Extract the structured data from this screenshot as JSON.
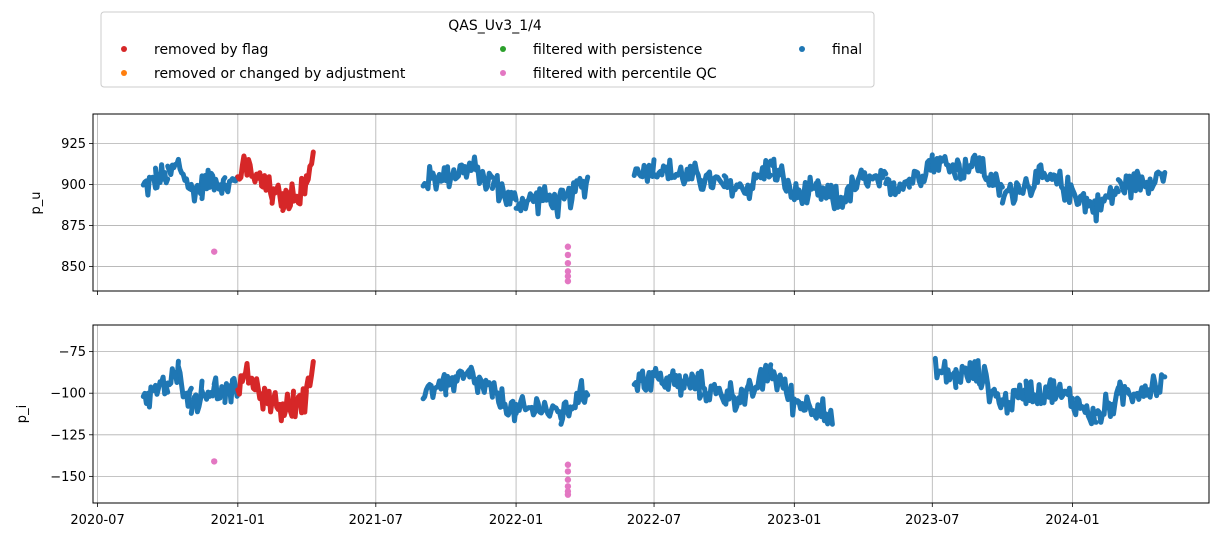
{
  "chart_data": {
    "type": "scatter",
    "legend": {
      "title": "QAS_Uv3_1/4",
      "placement": "top-left, above plots",
      "entries": [
        {
          "label": "removed by flag",
          "color": "#d62728"
        },
        {
          "label": "removed or changed by adjustment",
          "color": "#ff7f0e"
        },
        {
          "label": "filtered with persistence",
          "color": "#2ca02c"
        },
        {
          "label": "filtered with percentile QC",
          "color": "#e377c2"
        },
        {
          "label": "final",
          "color": "#1f77b4"
        }
      ]
    },
    "xlim": [
      "2020-06-25",
      "2024-06-28"
    ],
    "x_ticks": [
      "2020-07",
      "2021-01",
      "2021-07",
      "2022-01",
      "2022-07",
      "2023-01",
      "2023-07",
      "2024-01"
    ],
    "grid": true,
    "panels": [
      {
        "ylabel": "p_u",
        "ylim": [
          835,
          943
        ],
        "y_ticks": [
          850,
          875,
          900,
          925
        ],
        "series": [
          {
            "name": "final",
            "color": "#1f77b4",
            "segments": [
              {
                "x": [
                  "2020-08-30",
                  "2020-09-15",
                  "2020-10-01",
                  "2020-10-15",
                  "2020-11-01",
                  "2020-11-15",
                  "2020-12-01",
                  "2020-12-15",
                  "2020-12-31"
                ],
                "y": [
                  898,
                  903,
                  905,
                  913,
                  896,
                  899,
                  905,
                  898,
                  902
                ]
              },
              {
                "x": [
                  "2021-09-01",
                  "2021-10-01",
                  "2021-11-01",
                  "2021-12-01",
                  "2022-01-01",
                  "2022-02-01",
                  "2022-03-01",
                  "2022-04-05"
                ],
                "y": [
                  902,
                  906,
                  910,
                  901,
                  888,
                  892,
                  888,
                  903
                ]
              },
              {
                "x": [
                  "2022-06-05",
                  "2022-07-01",
                  "2022-08-01",
                  "2022-09-01",
                  "2022-10-01",
                  "2022-11-01",
                  "2022-12-01",
                  "2023-01-01",
                  "2023-02-01",
                  "2023-03-01",
                  "2023-04-01",
                  "2023-05-01",
                  "2023-06-01",
                  "2023-07-01",
                  "2023-08-01",
                  "2023-09-01",
                  "2023-10-01",
                  "2023-11-01",
                  "2023-12-01",
                  "2024-01-01",
                  "2024-02-01",
                  "2024-03-01",
                  "2024-04-01",
                  "2024-05-01"
                ],
                "y": [
                  908,
                  910,
                  906,
                  904,
                  899,
                  898,
                  912,
                  893,
                  895,
                  890,
                  903,
                  900,
                  902,
                  915,
                  910,
                  913,
                  893,
                  901,
                  903,
                  896,
                  885,
                  898,
                  903,
                  906
                ]
              }
            ]
          },
          {
            "name": "removed by flag",
            "color": "#d62728",
            "segments": [
              {
                "x": [
                  "2021-01-01",
                  "2021-01-15",
                  "2021-02-01",
                  "2021-02-15",
                  "2021-03-01",
                  "2021-03-15",
                  "2021-04-01",
                  "2021-04-10"
                ],
                "y": [
                  905,
                  910,
                  900,
                  895,
                  890,
                  893,
                  898,
                  923
                ]
              }
            ]
          },
          {
            "name": "filtered with percentile QC",
            "color": "#e377c2",
            "points": [
              {
                "x": "2020-12-01",
                "y": 859
              },
              {
                "x": "2022-03-10",
                "y": 862
              },
              {
                "x": "2022-03-10",
                "y": 857
              },
              {
                "x": "2022-03-10",
                "y": 852
              },
              {
                "x": "2022-03-10",
                "y": 847
              },
              {
                "x": "2022-03-10",
                "y": 844
              },
              {
                "x": "2022-03-10",
                "y": 841
              }
            ]
          }
        ]
      },
      {
        "ylabel": "p_i",
        "ylim": [
          -166,
          -59
        ],
        "y_ticks": [
          -150,
          -125,
          -100,
          -75
        ],
        "series": [
          {
            "name": "final",
            "color": "#1f77b4",
            "segments": [
              {
                "x": [
                  "2020-08-30",
                  "2020-09-15",
                  "2020-10-01",
                  "2020-10-15",
                  "2020-11-01",
                  "2020-11-15",
                  "2020-12-01",
                  "2020-12-15",
                  "2020-12-31"
                ],
                "y": [
                  -102,
                  -98,
                  -96,
                  -88,
                  -104,
                  -101,
                  -97,
                  -103,
                  -98
                ]
              },
              {
                "x": [
                  "2021-09-01",
                  "2021-10-01",
                  "2021-11-01",
                  "2021-12-01",
                  "2022-01-01",
                  "2022-02-01",
                  "2022-03-01",
                  "2022-04-05"
                ],
                "y": [
                  -98,
                  -94,
                  -90,
                  -100,
                  -112,
                  -108,
                  -113,
                  -98
                ]
              },
              {
                "x": [
                  "2022-06-05",
                  "2022-07-01",
                  "2022-08-01",
                  "2022-09-01",
                  "2022-10-01",
                  "2022-11-01",
                  "2022-12-01",
                  "2023-01-01",
                  "2023-02-01",
                  "2023-02-20"
                ],
                "y": [
                  -92,
                  -90,
                  -94,
                  -96,
                  -101,
                  -102,
                  -86,
                  -105,
                  -108,
                  -120
                ]
              },
              {
                "x": [
                  "2023-07-05",
                  "2023-08-01",
                  "2023-09-01",
                  "2023-10-01",
                  "2023-11-01",
                  "2023-12-01",
                  "2024-01-01",
                  "2024-02-01",
                  "2024-03-01",
                  "2024-04-01",
                  "2024-05-01"
                ],
                "y": [
                  -87,
                  -90,
                  -88,
                  -107,
                  -99,
                  -98,
                  -104,
                  -115,
                  -102,
                  -97,
                  -94
                ]
              }
            ]
          },
          {
            "name": "removed by flag",
            "color": "#d62728",
            "segments": [
              {
                "x": [
                  "2021-01-01",
                  "2021-01-15",
                  "2021-02-01",
                  "2021-02-15",
                  "2021-03-01",
                  "2021-03-15",
                  "2021-04-01",
                  "2021-04-10"
                ],
                "y": [
                  -95,
                  -90,
                  -100,
                  -105,
                  -110,
                  -107,
                  -102,
                  -77
                ]
              }
            ]
          },
          {
            "name": "filtered with percentile QC",
            "color": "#e377c2",
            "points": [
              {
                "x": "2020-12-01",
                "y": -141
              },
              {
                "x": "2022-03-10",
                "y": -143
              },
              {
                "x": "2022-03-10",
                "y": -147
              },
              {
                "x": "2022-03-10",
                "y": -152
              },
              {
                "x": "2022-03-10",
                "y": -156
              },
              {
                "x": "2022-03-10",
                "y": -159
              },
              {
                "x": "2022-03-10",
                "y": -161
              }
            ]
          }
        ]
      }
    ]
  }
}
